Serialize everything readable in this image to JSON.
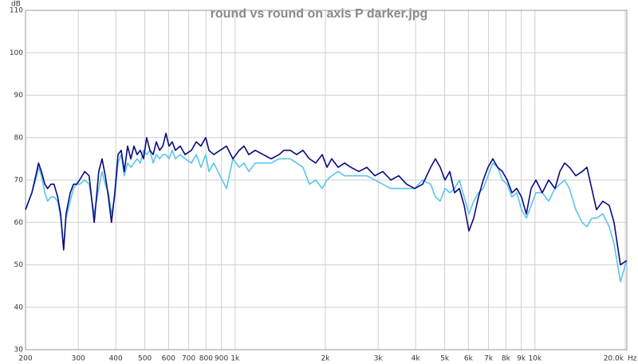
{
  "chart_data": {
    "type": "line",
    "title": "round vs round on axis P darker.jpg",
    "x_label": "Hz",
    "y_label": "dB",
    "x_scale": "log",
    "grid": true,
    "xlim": [
      200,
      20250
    ],
    "ylim": [
      30,
      110
    ],
    "yticks": [
      30,
      40,
      50,
      60,
      70,
      80,
      90,
      100,
      110
    ],
    "xticks": [
      200,
      300,
      400,
      500,
      600,
      700,
      800,
      900,
      {
        "value": 1000,
        "label": "1k"
      },
      {
        "value": 2000,
        "label": "2k"
      },
      {
        "value": 3000,
        "label": "3k"
      },
      {
        "value": 4000,
        "label": "4k"
      },
      {
        "value": 5000,
        "label": "5k"
      },
      {
        "value": 6000,
        "label": "6k"
      },
      {
        "value": 7000,
        "label": "7k"
      },
      {
        "value": 8000,
        "label": "8k"
      },
      {
        "value": 9000,
        "label": "9k"
      },
      {
        "value": 10000,
        "label": "10k"
      },
      {
        "value": 20000,
        "label": "20.0k"
      }
    ],
    "x": [
      200,
      210,
      218,
      221,
      226,
      232,
      237,
      243,
      249,
      256,
      262,
      268,
      273,
      282,
      289,
      296,
      303,
      315,
      326,
      339,
      351,
      360,
      369,
      378,
      387,
      397,
      407,
      417,
      427,
      438,
      449,
      460,
      471,
      483,
      495,
      507,
      520,
      533,
      546,
      560,
      574,
      588,
      602,
      617,
      632,
      656,
      681,
      715,
      742,
      769,
      798,
      818,
      849,
      891,
      936,
      983,
      1032,
      1071,
      1111,
      1167,
      1240,
      1319,
      1402,
      1454,
      1527,
      1604,
      1684,
      1769,
      1858,
      1952,
      2025,
      2100,
      2206,
      2317,
      2433,
      2586,
      2750,
      2924,
      3108,
      3305,
      3513,
      3735,
      3971,
      4222,
      4489,
      4657,
      4831,
      5012,
      5200,
      5394,
      5596,
      5806,
      6023,
      6248,
      6481,
      6723,
      6975,
      7236,
      7506,
      7787,
      8080,
      8381,
      8694,
      9019,
      9360,
      9710,
      10073,
      10579,
      11110,
      11668,
      12105,
      12559,
      13028,
      13683,
      14368,
      14906,
      15465,
      16039,
      16845,
      17690,
      18355,
      19279,
      20200
    ],
    "series": [
      {
        "color": "#5bc4ec",
        "values": [
          63,
          67,
          71,
          73,
          71,
          67,
          65,
          66,
          66,
          65,
          61,
          54,
          61,
          65,
          68,
          69,
          69,
          70,
          69,
          62,
          68,
          72,
          69,
          67,
          62,
          66,
          74,
          76,
          71,
          74,
          73,
          74,
          75,
          74,
          77,
          76,
          77,
          74,
          76,
          75,
          76,
          76,
          75,
          77,
          75,
          76,
          75,
          74,
          76,
          73,
          76,
          72,
          74,
          71,
          68,
          75,
          73,
          74,
          72,
          74,
          74,
          74,
          75,
          75,
          75,
          74,
          73,
          69,
          70,
          68,
          70,
          71,
          72,
          71,
          71,
          71,
          71,
          70,
          69,
          68,
          68,
          68,
          68,
          70,
          69,
          66,
          65,
          68,
          67,
          68,
          70,
          66,
          62,
          65,
          67,
          68,
          71,
          74,
          73,
          70,
          69,
          66,
          67,
          63,
          61,
          64,
          67,
          67,
          65,
          68,
          69,
          70,
          68,
          63,
          60,
          59,
          61,
          61,
          62,
          59,
          55,
          46,
          51
        ]
      },
      {
        "color": "#0a0a80",
        "values": [
          63,
          67,
          72,
          74,
          72,
          69,
          68,
          69,
          69,
          66,
          62,
          53.5,
          62,
          67,
          69,
          69,
          70,
          72,
          71,
          60,
          72,
          75,
          71,
          66,
          60,
          67,
          76,
          77,
          72,
          78,
          75,
          78,
          76,
          77,
          75,
          80,
          77,
          76,
          79,
          77,
          78,
          81,
          78,
          79,
          77,
          78,
          76,
          77,
          79,
          78,
          80,
          77,
          76,
          77,
          78,
          75,
          77,
          78,
          76,
          77,
          76,
          75,
          76,
          77,
          77,
          76,
          77,
          75,
          74,
          76,
          73,
          75,
          73,
          74,
          73,
          72,
          73,
          71,
          72,
          70,
          71,
          69,
          68,
          69,
          73,
          75,
          73,
          70,
          72,
          67,
          68,
          64,
          58,
          61,
          66,
          70,
          73,
          75,
          73,
          72,
          70,
          67,
          68,
          66,
          62,
          68,
          70,
          67,
          70,
          68,
          72,
          74,
          73,
          71,
          72,
          73,
          68,
          63,
          65,
          64,
          60,
          50,
          51
        ]
      }
    ]
  }
}
